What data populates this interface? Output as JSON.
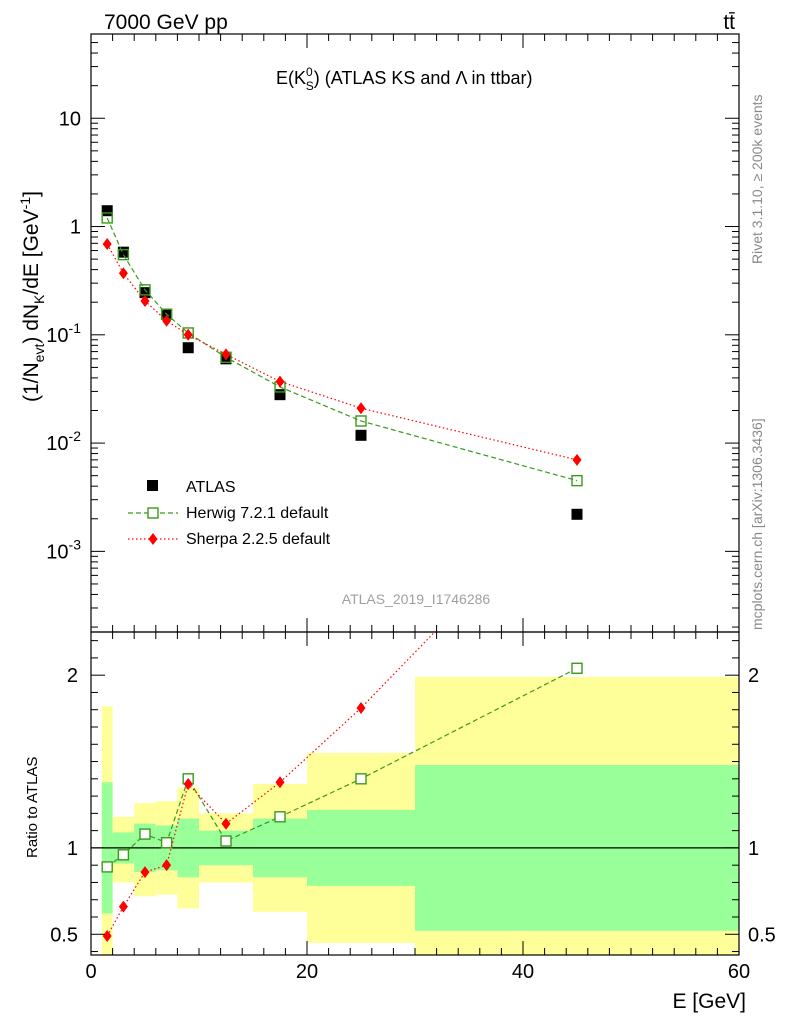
{
  "header": {
    "left": "7000 GeV pp",
    "right": "tt̄"
  },
  "title": {
    "prefix": "E(K",
    "sup": "0",
    "sub": "S",
    "suffix": ") (ATLAS KS and Λ in ttbar)"
  },
  "side_labels": {
    "rivet": "Rivet 3.1.10, ≥ 200k events",
    "mcplots": "mcplots.cern.ch [arXiv:1306.3436]"
  },
  "watermark": "ATLAS_2019_I1746286",
  "colors": {
    "atlas": "#000000",
    "herwig": "#3a9a1a",
    "sherpa": "#ff0000",
    "band_outer": "#ffff99",
    "band_inner": "#99ff99"
  },
  "chart_data": [
    {
      "type": "scatter",
      "panel": "main",
      "ylabel": "(1/N_evt) dN_K/dE [GeV^-1]",
      "yscale": "log",
      "ylim": [
        0.00018,
        60
      ],
      "xlim": [
        0,
        60
      ],
      "yticks": [
        "10^-3",
        "10^-2",
        "10^-1",
        "1",
        "10"
      ],
      "legend_position": "lower-left",
      "series": [
        {
          "name": "ATLAS",
          "marker": "square",
          "x": [
            1.5,
            3,
            5,
            7,
            9,
            12.5,
            17.5,
            25,
            45
          ],
          "y": [
            1.4,
            0.58,
            0.245,
            0.155,
            0.076,
            0.06,
            0.028,
            0.0118,
            0.0022
          ]
        },
        {
          "name": "Herwig 7.2.1 default",
          "marker": "open-square",
          "line": "dashed",
          "x": [
            1.5,
            3,
            5,
            7,
            9,
            12.5,
            17.5,
            25,
            45
          ],
          "y": [
            1.2,
            0.55,
            0.26,
            0.155,
            0.104,
            0.062,
            0.033,
            0.016,
            0.0045
          ]
        },
        {
          "name": "Sherpa 2.2.5 default",
          "marker": "diamond",
          "line": "dotted",
          "x": [
            1.5,
            3,
            5,
            7,
            9,
            12.5,
            17.5,
            25,
            45
          ],
          "y": [
            0.69,
            0.37,
            0.205,
            0.135,
            0.1,
            0.066,
            0.037,
            0.021,
            0.007
          ]
        }
      ]
    },
    {
      "type": "line",
      "panel": "ratio",
      "ylabel": "Ratio to ATLAS",
      "xlabel": "E [GeV]",
      "ylim": [
        0.38,
        2.25
      ],
      "xlim": [
        0,
        60
      ],
      "yticks": [
        "0.5",
        "1",
        "2"
      ],
      "xticks": [
        "0",
        "20",
        "40",
        "60"
      ],
      "bands": [
        {
          "x0": 1,
          "x1": 2,
          "outer": [
            0.18,
            1.82
          ],
          "inner": [
            0.62,
            1.38
          ]
        },
        {
          "x0": 2,
          "x1": 4,
          "outer": [
            0.8,
            1.18
          ],
          "inner": [
            0.91,
            1.09
          ]
        },
        {
          "x0": 4,
          "x1": 6,
          "outer": [
            0.72,
            1.26
          ],
          "inner": [
            0.86,
            1.14
          ]
        },
        {
          "x0": 6,
          "x1": 8,
          "outer": [
            0.73,
            1.27
          ],
          "inner": [
            0.87,
            1.13
          ]
        },
        {
          "x0": 8,
          "x1": 10,
          "outer": [
            0.65,
            1.35
          ],
          "inner": [
            0.83,
            1.17
          ]
        },
        {
          "x0": 10,
          "x1": 15,
          "outer": [
            0.8,
            1.2
          ],
          "inner": [
            0.9,
            1.1
          ]
        },
        {
          "x0": 15,
          "x1": 20,
          "outer": [
            0.63,
            1.37
          ],
          "inner": [
            0.83,
            1.17
          ]
        },
        {
          "x0": 20,
          "x1": 30,
          "outer": [
            0.45,
            1.55
          ],
          "inner": [
            0.78,
            1.22
          ]
        },
        {
          "x0": 30,
          "x1": 60,
          "outer": [
            0.01,
            1.99
          ],
          "inner": [
            0.52,
            1.48
          ]
        }
      ],
      "series": [
        {
          "name": "Herwig 7.2.1 default",
          "x": [
            1.5,
            3,
            5,
            7,
            9,
            12.5,
            17.5,
            25,
            45
          ],
          "y": [
            0.89,
            0.96,
            1.08,
            1.03,
            1.4,
            1.04,
            1.18,
            1.4,
            2.04
          ]
        },
        {
          "name": "Sherpa 2.2.5 default",
          "x": [
            1.5,
            3,
            5,
            7,
            9,
            12.5,
            17.5,
            25,
            45
          ],
          "y": [
            0.49,
            0.66,
            0.86,
            0.9,
            1.37,
            1.14,
            1.38,
            1.81,
            3.1
          ]
        }
      ]
    }
  ]
}
